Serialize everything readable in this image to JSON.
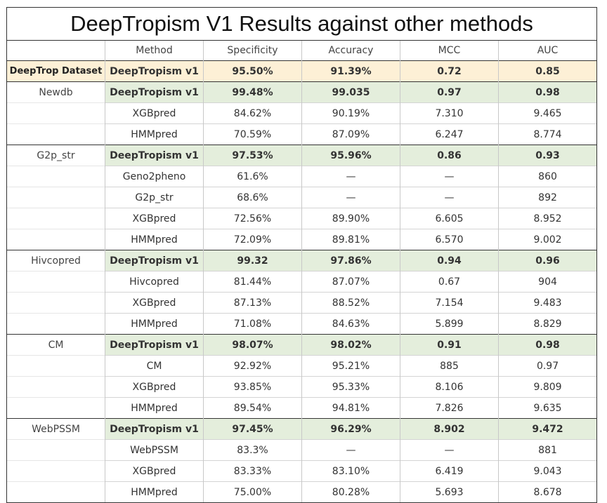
{
  "title": "DeepTropism V1 Results against other methods",
  "columns": [
    "",
    "Method",
    "Specificity",
    "Accuracy",
    "MCC",
    "AUC"
  ],
  "rows": [
    {
      "group": "DeepTrop Dataset",
      "method": "DeepTropism v1",
      "specificity": "95.50%",
      "accuracy": "91.39%",
      "mcc": "0.72",
      "auc": "0.85",
      "highlight": "orange",
      "group_start": true
    },
    {
      "group": "Newdb",
      "method": "DeepTropism v1",
      "specificity": "99.48%",
      "accuracy": "99.035",
      "mcc": "0.97",
      "auc": "0.98",
      "highlight": "green",
      "group_start": true
    },
    {
      "group": "",
      "method": "XGBpred",
      "specificity": "84.62%",
      "accuracy": "90.19%",
      "mcc": "7.310",
      "auc": "9.465",
      "highlight": "none",
      "group_start": false
    },
    {
      "group": "",
      "method": "HMMpred",
      "specificity": "70.59%",
      "accuracy": "87.09%",
      "mcc": "6.247",
      "auc": "8.774",
      "highlight": "none",
      "group_start": false
    },
    {
      "group": "G2p_str",
      "method": "DeepTropism v1",
      "specificity": "97.53%",
      "accuracy": "95.96%",
      "mcc": "0.86",
      "auc": "0.93",
      "highlight": "green",
      "group_start": true
    },
    {
      "group": "",
      "method": "Geno2pheno",
      "specificity": "61.6%",
      "accuracy": "—",
      "mcc": "—",
      "auc": "860",
      "highlight": "none",
      "group_start": false
    },
    {
      "group": "",
      "method": "G2p_str",
      "specificity": "68.6%",
      "accuracy": "—",
      "mcc": "—",
      "auc": "892",
      "highlight": "none",
      "group_start": false
    },
    {
      "group": "",
      "method": "XGBpred",
      "specificity": "72.56%",
      "accuracy": "89.90%",
      "mcc": "6.605",
      "auc": "8.952",
      "highlight": "none",
      "group_start": false
    },
    {
      "group": "",
      "method": "HMMpred",
      "specificity": "72.09%",
      "accuracy": "89.81%",
      "mcc": "6.570",
      "auc": "9.002",
      "highlight": "none",
      "group_start": false
    },
    {
      "group": "Hivcopred",
      "method": "DeepTropism v1",
      "specificity": "99.32",
      "accuracy": "97.86%",
      "mcc": "0.94",
      "auc": "0.96",
      "highlight": "green",
      "group_start": true
    },
    {
      "group": "",
      "method": "Hivcopred",
      "specificity": "81.44%",
      "accuracy": "87.07%",
      "mcc": "0.67",
      "auc": "904",
      "highlight": "none",
      "group_start": false
    },
    {
      "group": "",
      "method": "XGBpred",
      "specificity": "87.13%",
      "accuracy": "88.52%",
      "mcc": "7.154",
      "auc": "9.483",
      "highlight": "none",
      "group_start": false
    },
    {
      "group": "",
      "method": "HMMpred",
      "specificity": "71.08%",
      "accuracy": "84.63%",
      "mcc": "5.899",
      "auc": "8.829",
      "highlight": "none",
      "group_start": false
    },
    {
      "group": "CM",
      "method": "DeepTropism v1",
      "specificity": "98.07%",
      "accuracy": "98.02%",
      "mcc": "0.91",
      "auc": "0.98",
      "highlight": "green",
      "group_start": true
    },
    {
      "group": "",
      "method": "CM",
      "specificity": "92.92%",
      "accuracy": "95.21%",
      "mcc": "885",
      "auc": "0.97",
      "highlight": "none",
      "group_start": false
    },
    {
      "group": "",
      "method": "XGBpred",
      "specificity": "93.85%",
      "accuracy": "95.33%",
      "mcc": "8.106",
      "auc": "9.809",
      "highlight": "none",
      "group_start": false
    },
    {
      "group": "",
      "method": "HMMpred",
      "specificity": "89.54%",
      "accuracy": "94.81%",
      "mcc": "7.826",
      "auc": "9.635",
      "highlight": "none",
      "group_start": false
    },
    {
      "group": "WebPSSM",
      "method": "DeepTropism v1",
      "specificity": "97.45%",
      "accuracy": "96.29%",
      "mcc": "8.902",
      "auc": "9.472",
      "highlight": "green",
      "group_start": true
    },
    {
      "group": "",
      "method": "WebPSSM",
      "specificity": "83.3%",
      "accuracy": "—",
      "mcc": "—",
      "auc": "881",
      "highlight": "none",
      "group_start": false
    },
    {
      "group": "",
      "method": "XGBpred",
      "specificity": "83.33%",
      "accuracy": "83.10%",
      "mcc": "6.419",
      "auc": "9.043",
      "highlight": "none",
      "group_start": false
    },
    {
      "group": "",
      "method": "HMMpred",
      "specificity": "75.00%",
      "accuracy": "80.28%",
      "mcc": "5.693",
      "auc": "8.678",
      "highlight": "none",
      "group_start": false
    }
  ],
  "colors": {
    "orange_highlight": "#fdf0d6",
    "green_highlight": "#e4eedc",
    "border_dark": "#333333",
    "border_light": "#d4d4d4"
  }
}
